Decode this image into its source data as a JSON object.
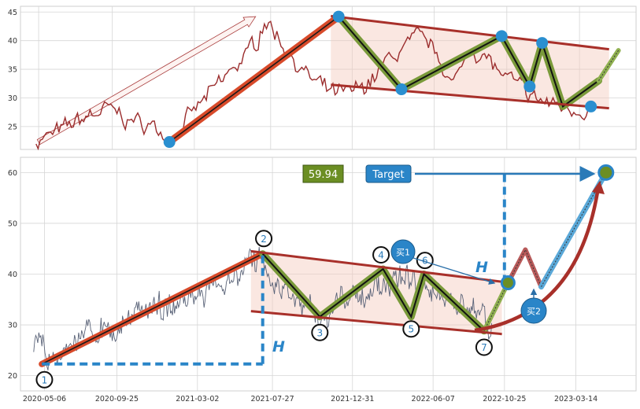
{
  "chart_data": [
    {
      "type": "line",
      "title": "",
      "xlabel": "",
      "ylabel": "",
      "x_range": [
        "2020-04-01",
        "2023-07-01"
      ],
      "ylim": [
        21,
        46
      ],
      "y_ticks": [
        25,
        30,
        35,
        40,
        45
      ],
      "grid": true,
      "series": [
        {
          "line_style": "price",
          "color": "#9b2d2d",
          "x": [
            "2020-05-01",
            "2020-06-15",
            "2020-08-01",
            "2020-09-15",
            "2020-11-01",
            "2020-12-15",
            "2021-01-15",
            "2021-02-15",
            "2021-03-15",
            "2021-04-15",
            "2021-05-15",
            "2021-06-15",
            "2021-07-01",
            "2021-07-15",
            "2021-08-15",
            "2021-09-15",
            "2021-10-15",
            "2021-11-15",
            "2021-12-15",
            "2022-01-15",
            "2022-02-15",
            "2022-03-15",
            "2022-04-15",
            "2022-05-15",
            "2022-06-15",
            "2022-07-15",
            "2022-08-15",
            "2022-09-15",
            "2022-10-15",
            "2022-11-15",
            "2022-12-15",
            "2023-01-15",
            "2023-02-15",
            "2023-03-15",
            "2023-04-01"
          ],
          "values": [
            22.5,
            24,
            26.5,
            28,
            26,
            25,
            22.5,
            26,
            29,
            32,
            35,
            38,
            40,
            44,
            40,
            36,
            33,
            31,
            30.5,
            31.5,
            34,
            37,
            39,
            40.5,
            37.5,
            32,
            39,
            37,
            34,
            32,
            30,
            29,
            28.5,
            28,
            28.5
          ]
        }
      ],
      "pattern_lines": [
        {
          "x": [
            "2020-05-06",
            "2021-06-28"
          ],
          "values": [
            22.3,
            44.2
          ],
          "style": "trend-arrow"
        },
        {
          "x": [
            "2021-01-13",
            "2021-12-05"
          ],
          "values": [
            22.3,
            44.2
          ],
          "style": "trend-thick"
        },
        {
          "x": [
            "2021-12-05",
            "2022-04-05",
            "2022-10-15",
            "2022-12-08",
            "2023-01-01",
            "2023-02-10",
            "2023-04-20",
            "2023-05-28"
          ],
          "values": [
            44.2,
            31.5,
            40.8,
            32.0,
            39.6,
            28.5,
            33.0,
            38.3
          ],
          "style": "zigzag"
        },
        {
          "x": [
            "2021-11-20",
            "2023-05-10"
          ],
          "values": [
            44.3,
            38.5
          ],
          "style": "channel"
        },
        {
          "x": [
            "2021-11-20",
            "2023-05-10"
          ],
          "values": [
            32.3,
            28.2
          ],
          "style": "channel"
        }
      ],
      "markers": [
        {
          "x": "2021-01-13",
          "y": 22.3
        },
        {
          "x": "2021-12-05",
          "y": 44.2
        },
        {
          "x": "2022-04-05",
          "y": 31.5
        },
        {
          "x": "2022-10-15",
          "y": 40.8
        },
        {
          "x": "2022-12-08",
          "y": 32.0
        },
        {
          "x": "2023-01-01",
          "y": 39.6
        },
        {
          "x": "2023-04-05",
          "y": 28.5
        }
      ]
    },
    {
      "type": "line",
      "title": "",
      "xlabel": "",
      "ylabel": "",
      "x_range": [
        "2020-03-20",
        "2023-07-10"
      ],
      "ylim": [
        17,
        63
      ],
      "y_ticks": [
        20,
        30,
        40,
        50,
        60
      ],
      "x_ticks": [
        "2020-05-06",
        "2020-09-25",
        "2021-03-02",
        "2021-07-27",
        "2021-12-31",
        "2022-06-07",
        "2022-10-25",
        "2023-03-14"
      ],
      "grid": true,
      "series": [
        {
          "line_style": "price",
          "color": "#5a6378",
          "x": [
            "2020-04-15",
            "2020-05-15",
            "2020-06-15",
            "2020-07-15",
            "2020-08-15",
            "2020-09-15",
            "2020-10-15",
            "2020-11-15",
            "2020-12-15",
            "2021-01-15",
            "2021-02-15",
            "2021-03-15",
            "2021-04-15",
            "2021-05-15",
            "2021-06-15",
            "2021-07-01",
            "2021-07-15",
            "2021-08-15",
            "2021-09-15",
            "2021-10-15",
            "2021-11-15",
            "2021-12-15",
            "2022-01-15",
            "2022-02-15",
            "2022-03-15",
            "2022-04-15",
            "2022-05-15",
            "2022-06-15",
            "2022-07-15",
            "2022-08-15",
            "2022-09-15",
            "2022-10-01"
          ],
          "values": [
            26,
            23,
            24,
            27,
            30,
            29,
            31,
            33,
            34,
            34,
            35.5,
            36.5,
            38,
            40.5,
            41.5,
            43,
            40,
            37,
            34,
            32,
            33,
            35,
            36,
            36,
            38,
            40,
            36,
            37,
            35,
            33,
            31,
            29.5
          ]
        }
      ],
      "pattern_lines": [
        {
          "x": [
            "2020-05-01",
            "2021-07-08"
          ],
          "values": [
            22.3,
            44.0
          ],
          "style": "trend-thick"
        },
        {
          "x": [
            "2021-07-08",
            "2021-10-28",
            "2022-03-01",
            "2022-04-25",
            "2022-05-20",
            "2022-09-15"
          ],
          "values": [
            44.0,
            31.6,
            41.0,
            31.6,
            40.0,
            28.8
          ],
          "style": "zigzag"
        },
        {
          "x": [
            "2022-09-15",
            "2022-11-01"
          ],
          "values": [
            28.8,
            38.3
          ],
          "style": "projection-green"
        },
        {
          "x": [
            "2022-11-01",
            "2022-12-05",
            "2023-01-05"
          ],
          "values": [
            38.3,
            44.8,
            37.5
          ],
          "style": "projection-red"
        },
        {
          "x": [
            "2023-01-05",
            "2023-05-12"
          ],
          "values": [
            37.5,
            60.0
          ],
          "style": "projection-blue"
        },
        {
          "x": [
            "2021-06-15",
            "2022-10-20"
          ],
          "values": [
            44.5,
            38.5
          ],
          "style": "channel"
        },
        {
          "x": [
            "2021-06-15",
            "2022-10-20"
          ],
          "values": [
            32.7,
            28.2
          ],
          "style": "channel"
        },
        {
          "x": [
            "2020-05-01",
            "2021-07-08"
          ],
          "values": [
            22.3,
            22.3
          ],
          "style": "height-dashed"
        },
        {
          "x": [
            "2021-07-08",
            "2021-07-08"
          ],
          "values": [
            22.3,
            44.0
          ],
          "style": "height-dashed"
        },
        {
          "x": [
            "2022-10-25",
            "2022-10-25"
          ],
          "values": [
            38.3,
            60.0
          ],
          "style": "height-dashed"
        }
      ],
      "numbered_points": [
        {
          "label": "1",
          "x": "2020-05-06",
          "y": 19.2
        },
        {
          "label": "2",
          "x": "2021-07-10",
          "y": 47.0
        },
        {
          "label": "3",
          "x": "2021-10-28",
          "y": 28.5
        },
        {
          "label": "4",
          "x": "2022-02-25",
          "y": 43.8
        },
        {
          "label": "5",
          "x": "2022-04-25",
          "y": 29.2
        },
        {
          "label": "6",
          "x": "2022-05-22",
          "y": 42.7
        },
        {
          "label": "7",
          "x": "2022-09-15",
          "y": 25.6
        }
      ],
      "markers": [
        {
          "x": "2022-11-01",
          "y": 38.3
        },
        {
          "x": "2023-05-12",
          "y": 60.0
        }
      ],
      "annotations": {
        "price_box": "59.94",
        "target_box": "Target",
        "height_label": "H",
        "buy1_label": "买1",
        "buy2_label": "买2"
      }
    }
  ]
}
